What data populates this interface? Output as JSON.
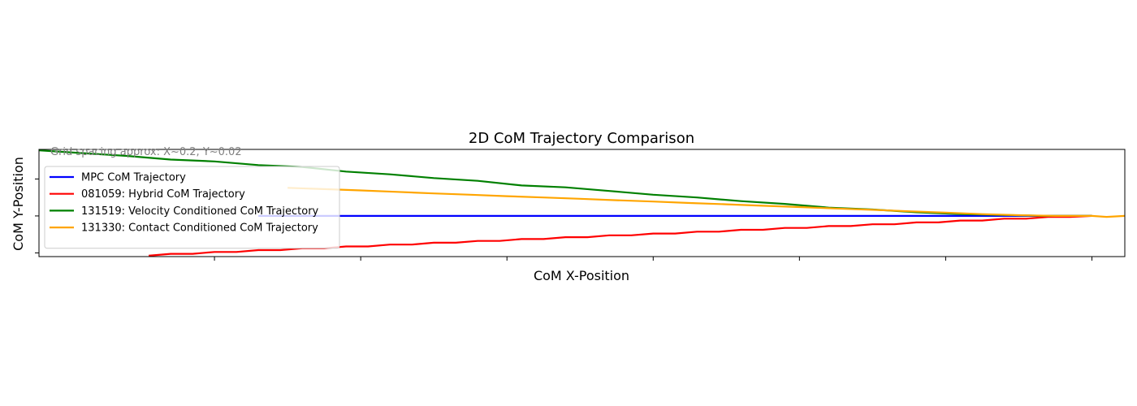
{
  "chart_data": {
    "type": "line",
    "title": "2D CoM Trajectory Comparison",
    "xlabel": "CoM X-Position",
    "ylabel": "CoM Y-Position",
    "annotation": "Grid spacing approx: X~0.2, Y~0.02",
    "xlim": [
      -0.84,
      0.645
    ],
    "ylim": [
      -0.022,
      0.036
    ],
    "x_ticks": [
      -0.6,
      -0.4,
      -0.2,
      0.0,
      0.2,
      0.4,
      0.6
    ],
    "y_ticks": [
      -0.02,
      0.0,
      0.02
    ],
    "grid": false,
    "legend_position": "upper-left",
    "series": [
      {
        "name": "MPC CoM Trajectory",
        "color": "#0000ff",
        "x": [
          -0.54,
          0.6
        ],
        "y": [
          0.0,
          0.0
        ]
      },
      {
        "name": "081059: Hybrid CoM Trajectory",
        "color": "#ff0000",
        "x": [
          -0.69,
          -0.66,
          -0.63,
          -0.6,
          -0.57,
          -0.54,
          -0.51,
          -0.48,
          -0.45,
          -0.42,
          -0.39,
          -0.36,
          -0.33,
          -0.3,
          -0.27,
          -0.24,
          -0.21,
          -0.18,
          -0.15,
          -0.12,
          -0.09,
          -0.06,
          -0.03,
          0.0,
          0.03,
          0.06,
          0.09,
          0.12,
          0.15,
          0.18,
          0.21,
          0.24,
          0.27,
          0.3,
          0.33,
          0.36,
          0.39,
          0.42,
          0.45,
          0.48,
          0.51,
          0.54,
          0.57,
          0.6
        ],
        "y": [
          -0.0215,
          -0.0205,
          -0.0205,
          -0.0195,
          -0.0195,
          -0.0185,
          -0.0185,
          -0.0175,
          -0.0175,
          -0.0165,
          -0.0165,
          -0.0155,
          -0.0155,
          -0.0145,
          -0.0145,
          -0.0135,
          -0.0135,
          -0.0125,
          -0.0125,
          -0.0115,
          -0.0115,
          -0.0105,
          -0.0105,
          -0.0095,
          -0.0095,
          -0.0085,
          -0.0085,
          -0.0075,
          -0.0075,
          -0.0065,
          -0.0065,
          -0.0055,
          -0.0055,
          -0.0045,
          -0.0045,
          -0.0035,
          -0.0035,
          -0.0025,
          -0.0025,
          -0.0015,
          -0.0015,
          -0.0005,
          -0.0005,
          0.0
        ]
      },
      {
        "name": "131519: Velocity Conditioned CoM Trajectory",
        "color": "#008000",
        "x": [
          -0.84,
          -0.78,
          -0.72,
          -0.66,
          -0.6,
          -0.54,
          -0.48,
          -0.42,
          -0.36,
          -0.3,
          -0.24,
          -0.18,
          -0.12,
          -0.06,
          0.0,
          0.06,
          0.12,
          0.18,
          0.24,
          0.3,
          0.36,
          0.42,
          0.48,
          0.54,
          0.6
        ],
        "y": [
          0.0355,
          0.034,
          0.0325,
          0.0305,
          0.0295,
          0.0275,
          0.0265,
          0.024,
          0.0225,
          0.0205,
          0.019,
          0.0165,
          0.0155,
          0.0135,
          0.0115,
          0.01,
          0.008,
          0.0065,
          0.0045,
          0.0035,
          0.002,
          0.001,
          0.0005,
          0.0,
          0.0
        ]
      },
      {
        "name": "131330: Contact Conditioned CoM Trajectory",
        "color": "#ffa500",
        "x": [
          -0.5,
          -0.45,
          -0.4,
          -0.35,
          -0.3,
          -0.25,
          -0.2,
          -0.15,
          -0.1,
          -0.05,
          0.0,
          0.05,
          0.1,
          0.15,
          0.2,
          0.25,
          0.3,
          0.35,
          0.4,
          0.45,
          0.5,
          0.55,
          0.6,
          0.62,
          0.645
        ],
        "y": [
          0.0152,
          0.0145,
          0.0138,
          0.013,
          0.0122,
          0.0115,
          0.0107,
          0.01,
          0.0093,
          0.0085,
          0.0078,
          0.007,
          0.0063,
          0.0055,
          0.0048,
          0.004,
          0.0033,
          0.0025,
          0.0018,
          0.001,
          0.0004,
          0.0,
          0.0,
          -0.0005,
          0.0
        ]
      }
    ]
  }
}
